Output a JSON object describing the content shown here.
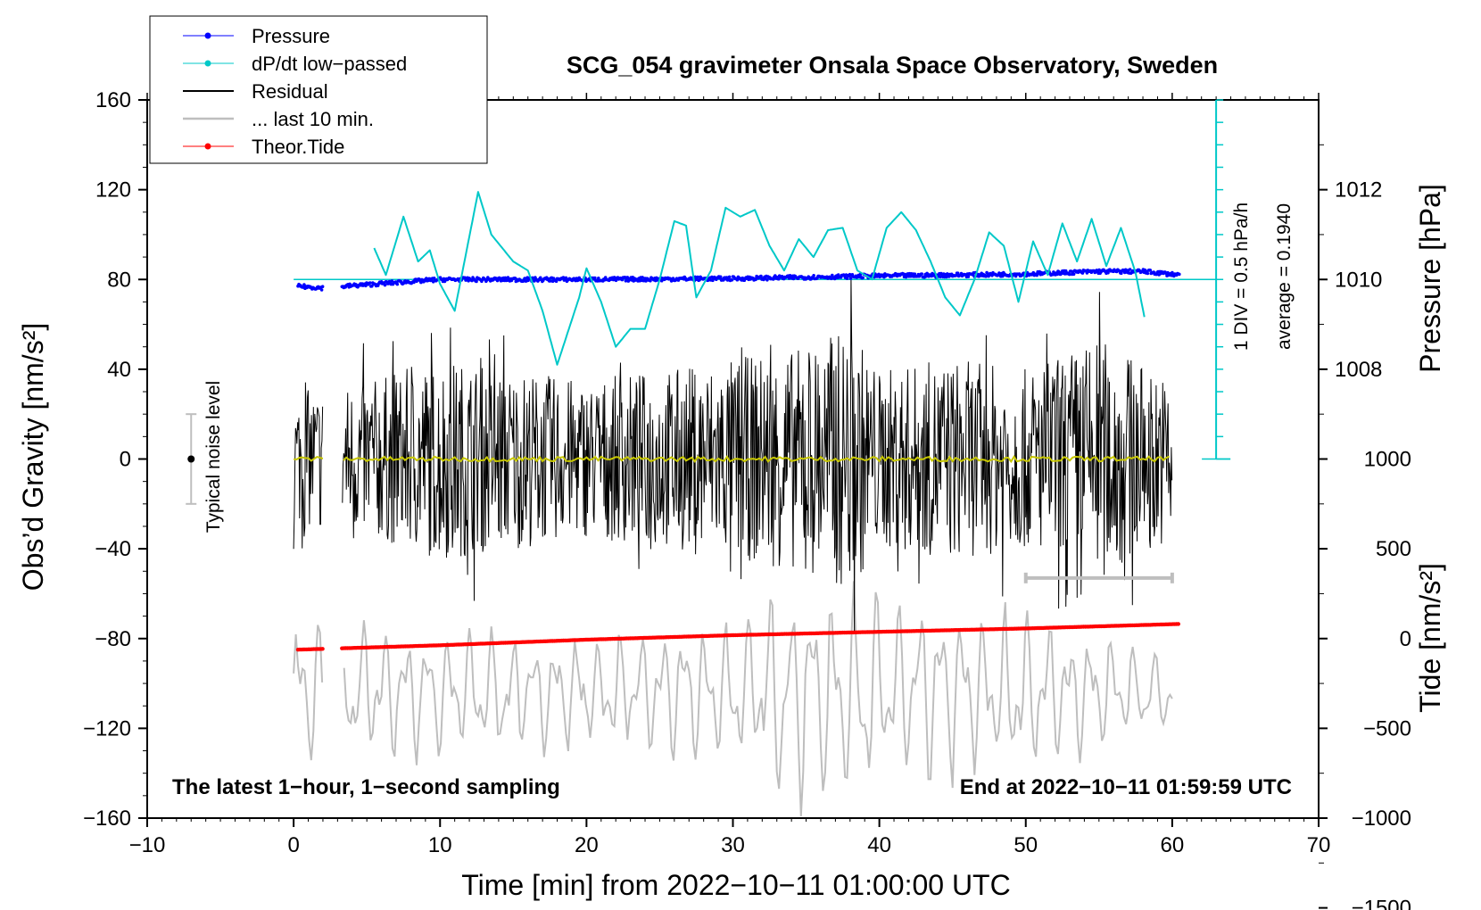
{
  "chart_data": {
    "type": "line",
    "title": "SCG_054 gravimeter Onsala Space Observatory, Sweden",
    "xlabel": "Time [min] from 2022−10−11 01:00:00 UTC",
    "ylabel_left": "Obs’d Gravity [nm/s²]",
    "ylabel_right_top": "Pressure [hPa]",
    "ylabel_right_bottom": "Tide [nm/s²]",
    "xlim": [
      -10,
      70
    ],
    "ylim": [
      -160,
      160
    ],
    "x_ticks": [
      -10,
      0,
      10,
      20,
      30,
      40,
      50,
      60,
      70
    ],
    "x_tick_labels": [
      "−10",
      "0",
      "10",
      "20",
      "30",
      "40",
      "50",
      "60",
      "70"
    ],
    "y_ticks": [
      -160,
      -120,
      -80,
      -40,
      0,
      40,
      80,
      120,
      160
    ],
    "y_tick_labels": [
      "−160",
      "−120",
      "−80",
      "−40",
      "0",
      "40",
      "80",
      "120",
      "160"
    ],
    "pressure_axis": {
      "ticks": [
        1008,
        1010,
        1012
      ],
      "tick_labels": [
        "1008",
        "1010",
        "1012"
      ],
      "hpa_per_nms2": 0.05
    },
    "tide_axis": {
      "ticks": [
        -1500,
        -1000,
        -500,
        0,
        500,
        1000
      ],
      "tick_labels": [
        "−1500",
        "−1000",
        "−500",
        "0",
        "500",
        "1000"
      ],
      "nms2_per_tide": 0.08
    },
    "legend": [
      {
        "label": "Pressure",
        "color": "#0000ff",
        "marker": true
      },
      {
        "label": "dP/dt low−passed",
        "color": "#00c8c8",
        "marker": true
      },
      {
        "label": "Residual",
        "color": "#000000",
        "marker": false
      },
      {
        "label": "... last 10 min.",
        "color": "#bebebe",
        "marker": false
      },
      {
        "label": "Theor.Tide",
        "color": "#ff0000",
        "marker": true
      }
    ],
    "legend_position": "top-left",
    "annotations": {
      "bottom_left": "The latest 1−hour, 1−second sampling",
      "bottom_right": "End at 2022−10−11 01:59:59 UTC",
      "dpdt_scale": "1 DIV = 0.5 hPa/h",
      "average": "average = 0.1940",
      "noise": "Typical noise level"
    },
    "noise_level": {
      "x": -7,
      "center": 0,
      "half_range": 20
    },
    "last10_bar": {
      "x": [
        50,
        60
      ],
      "y": -53
    },
    "dpdt_scale_axis": {
      "x": 63,
      "y": [
        0,
        160
      ],
      "divisions": 16
    },
    "data_gaps_min": [
      [
        2.0,
        3.3
      ]
    ],
    "series": [
      {
        "name": "Pressure",
        "unit": "hPa",
        "color": "#0000ff",
        "x": [
          0.3,
          2.5,
          3.5,
          10,
          20,
          30,
          40,
          50,
          55,
          58,
          60.5
        ],
        "y": [
          1009.85,
          1009.8,
          1009.85,
          1010.0,
          1010.0,
          1010.02,
          1010.08,
          1010.12,
          1010.18,
          1010.18,
          1010.1
        ]
      },
      {
        "name": "dP/dt low−passed",
        "unit": "nm/s² equiv.",
        "color": "#00c8c8",
        "x": [
          5.5,
          6.3,
          7.5,
          8.5,
          9.3,
          10,
          11,
          12.6,
          13.5,
          15,
          16,
          17,
          18,
          19.5,
          20,
          21,
          22,
          23,
          24,
          25,
          26,
          26.8,
          27.5,
          28.5,
          29.5,
          30.5,
          31.5,
          32.5,
          33.5,
          34.5,
          35.5,
          36.5,
          37.5,
          38.5,
          39.5,
          40.5,
          41.5,
          42.5,
          43.5,
          44.5,
          45.5,
          46.5,
          47.5,
          48.5,
          49.5,
          50.5,
          51.5,
          52.5,
          53.5,
          54.5,
          55.5,
          56.5,
          57.5,
          58.2
        ],
        "y": [
          94,
          82,
          108,
          88,
          93,
          78,
          66,
          119,
          100,
          88,
          84,
          66,
          42,
          72,
          85,
          70,
          50,
          58,
          58,
          80,
          106,
          104,
          72,
          84,
          112,
          108,
          111,
          95,
          84,
          98,
          90,
          102,
          103,
          84,
          80,
          103,
          110,
          102,
          88,
          72,
          64,
          80,
          101,
          95,
          70,
          97,
          82,
          105,
          88,
          107,
          86,
          103,
          83,
          60
        ]
      },
      {
        "name": "Residual",
        "unit": "nm/s²",
        "color": "#000000",
        "x": [
          0,
          5,
          10,
          15,
          20,
          25,
          30,
          35,
          38,
          40,
          45,
          50,
          55,
          60
        ],
        "amplitude": [
          30,
          35,
          45,
          40,
          35,
          40,
          45,
          50,
          60,
          40,
          45,
          40,
          55,
          35
        ]
      },
      {
        "name": "Smoothed residual",
        "unit": "nm/s²",
        "color": "#c8c800",
        "x": [
          0,
          60
        ],
        "y": [
          0,
          0
        ]
      },
      {
        "name": "... last 10 min.",
        "unit": "nm/s² (tide scale)",
        "color": "#bebebe",
        "x": [
          0,
          10,
          20,
          30,
          35,
          40,
          50,
          60
        ],
        "amplitude": [
          500,
          400,
          350,
          450,
          750,
          600,
          500,
          250
        ],
        "center": -300
      },
      {
        "name": "Theor.Tide",
        "unit": "nm/s²",
        "color": "#ff0000",
        "x": [
          0,
          10,
          20,
          30,
          40,
          50,
          60.5
        ],
        "y": [
          -85,
          -83,
          -80.5,
          -78.5,
          -77,
          -75.5,
          -73.5
        ]
      }
    ]
  }
}
